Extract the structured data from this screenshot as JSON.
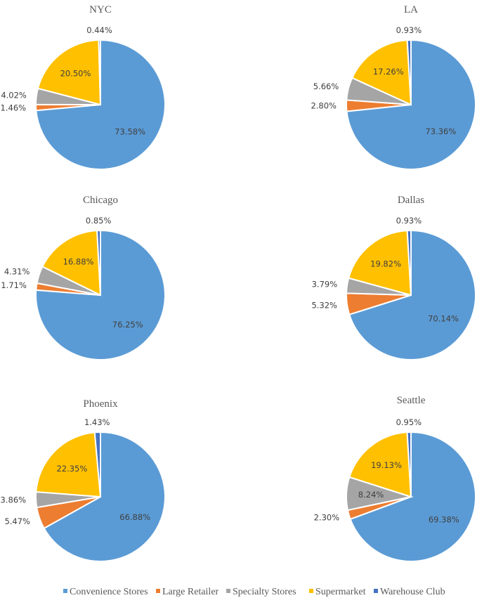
{
  "chart_data": {
    "type": "pie",
    "legend_position": "bottom",
    "categories": [
      "Convenience Stores",
      "Large Retailer",
      "Specialty Stores",
      "Supermarket",
      "Warehouse Club"
    ],
    "colors": [
      "#5B9BD5",
      "#ED7D31",
      "#A5A5A5",
      "#FFC000",
      "#4472C4"
    ],
    "charts": [
      {
        "title": "NYC",
        "values": [
          73.58,
          1.46,
          4.02,
          20.5,
          0.44
        ],
        "labels": [
          "73.58%",
          "1.46%",
          "4.02%",
          "20.50%",
          "0.44%"
        ]
      },
      {
        "title": "LA",
        "values": [
          73.36,
          2.8,
          5.66,
          17.26,
          0.93
        ],
        "labels": [
          "73.36%",
          "2.80%",
          "5.66%",
          "17.26%",
          "0.93%"
        ]
      },
      {
        "title": "Chicago",
        "values": [
          76.25,
          1.71,
          4.31,
          16.88,
          0.85
        ],
        "labels": [
          "76.25%",
          "1.71%",
          "4.31%",
          "16.88%",
          "0.85%"
        ]
      },
      {
        "title": "Dallas",
        "values": [
          70.14,
          5.32,
          3.79,
          19.82,
          0.93
        ],
        "labels": [
          "70.14%",
          "5.32%",
          "3.79%",
          "19.82%",
          "0.93%"
        ]
      },
      {
        "title": "Phoenix",
        "values": [
          66.88,
          5.47,
          3.86,
          22.35,
          1.43
        ],
        "labels": [
          "66.88%",
          "5.47%",
          "3.86%",
          "22.35%",
          "1.43%"
        ]
      },
      {
        "title": "Seattle",
        "values": [
          69.38,
          2.3,
          8.24,
          19.13,
          0.95
        ],
        "labels": [
          "69.38%",
          "2.30%",
          "8.24%",
          "19.13%",
          "0.95%"
        ]
      }
    ]
  }
}
